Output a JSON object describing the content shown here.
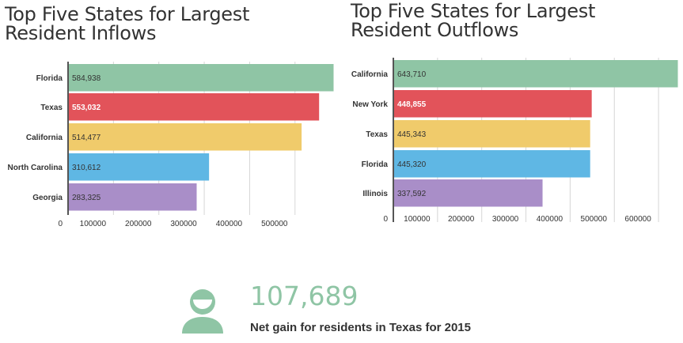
{
  "chart_data": [
    {
      "type": "bar",
      "orientation": "horizontal",
      "title": [
        "Top Five States for Largest",
        "Resident Inflows"
      ],
      "categories": [
        "Florida",
        "Texas",
        "California",
        "North Carolina",
        "Georgia"
      ],
      "values": [
        584938,
        553032,
        514477,
        310612,
        283325
      ],
      "value_labels": [
        "584,938",
        "553,032",
        "514,477",
        "310,612",
        "283,325"
      ],
      "colors": [
        "#8FC5A5",
        "#E2535A",
        "#F0CB6B",
        "#5FB7E4",
        "#A98EC8"
      ],
      "xticks": [
        0,
        100000,
        200000,
        300000,
        400000,
        500000
      ],
      "xlim": [
        0,
        584938
      ],
      "grid": true
    },
    {
      "type": "bar",
      "orientation": "horizontal",
      "title": [
        "Top Five States for Largest",
        "Resident Outflows"
      ],
      "categories": [
        "California",
        "New York",
        "Texas",
        "Florida",
        "Illinois"
      ],
      "values": [
        643710,
        448855,
        445343,
        445320,
        337592
      ],
      "value_labels": [
        "643,710",
        "448,855",
        "445,343",
        "445,320",
        "337,592"
      ],
      "colors": [
        "#8FC5A5",
        "#E2535A",
        "#F0CB6B",
        "#5FB7E4",
        "#A98EC8"
      ],
      "xticks": [
        0,
        100000,
        200000,
        300000,
        400000,
        500000,
        600000
      ],
      "xlim": [
        0,
        643710
      ],
      "grid": true
    }
  ],
  "stat": {
    "number": "107,689",
    "caption": "Net gain for residents in Texas for 2015",
    "accent_color": "#8FC5A5",
    "icon": "person-icon"
  }
}
